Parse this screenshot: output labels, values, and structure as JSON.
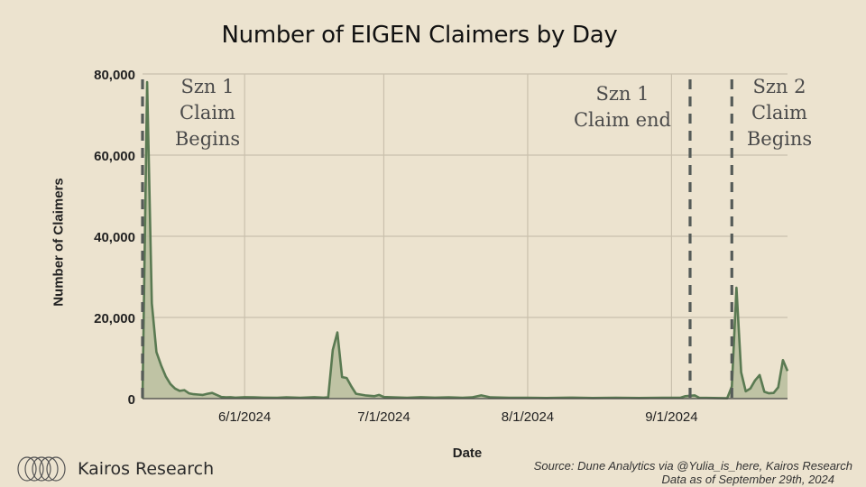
{
  "chart_data": {
    "type": "area",
    "title": "Number of EIGEN Claimers by Day",
    "xlabel": "Date",
    "ylabel": "Number of Claimers",
    "x_range": [
      "2024-05-10",
      "2024-09-26"
    ],
    "ylim": [
      0,
      80000
    ],
    "y_ticks": [
      0,
      20000,
      40000,
      60000,
      80000
    ],
    "y_tick_labels": [
      "0",
      "20,000",
      "40,000",
      "60,000",
      "80,000"
    ],
    "x_ticks": [
      "2024-06-01",
      "2024-07-01",
      "2024-08-01",
      "2024-09-01"
    ],
    "x_tick_labels": [
      "6/1/2024",
      "7/1/2024",
      "8/1/2024",
      "9/1/2024"
    ],
    "grid": true,
    "series": [
      {
        "color": "#5a7a52",
        "points": [
          [
            "2024-05-10",
            0
          ],
          [
            "2024-05-11",
            78000
          ],
          [
            "2024-05-12",
            23500
          ],
          [
            "2024-05-13",
            11500
          ],
          [
            "2024-05-14",
            8200
          ],
          [
            "2024-05-15",
            5500
          ],
          [
            "2024-05-16",
            3600
          ],
          [
            "2024-05-17",
            2500
          ],
          [
            "2024-05-18",
            1900
          ],
          [
            "2024-05-19",
            2100
          ],
          [
            "2024-05-20",
            1300
          ],
          [
            "2024-05-21",
            1100
          ],
          [
            "2024-05-22",
            1000
          ],
          [
            "2024-05-23",
            900
          ],
          [
            "2024-05-24",
            1200
          ],
          [
            "2024-05-25",
            1400
          ],
          [
            "2024-05-26",
            900
          ],
          [
            "2024-05-27",
            400
          ],
          [
            "2024-05-28",
            300
          ],
          [
            "2024-05-29",
            350
          ],
          [
            "2024-05-30",
            250
          ],
          [
            "2024-06-01",
            350
          ],
          [
            "2024-06-03",
            300
          ],
          [
            "2024-06-05",
            250
          ],
          [
            "2024-06-08",
            200
          ],
          [
            "2024-06-10",
            300
          ],
          [
            "2024-06-13",
            200
          ],
          [
            "2024-06-16",
            350
          ],
          [
            "2024-06-18",
            250
          ],
          [
            "2024-06-19",
            300
          ],
          [
            "2024-06-20",
            12000
          ],
          [
            "2024-06-21",
            16300
          ],
          [
            "2024-06-22",
            5300
          ],
          [
            "2024-06-23",
            5100
          ],
          [
            "2024-06-24",
            3000
          ],
          [
            "2024-06-25",
            1200
          ],
          [
            "2024-06-27",
            800
          ],
          [
            "2024-06-29",
            600
          ],
          [
            "2024-06-30",
            900
          ],
          [
            "2024-07-01",
            400
          ],
          [
            "2024-07-03",
            300
          ],
          [
            "2024-07-06",
            200
          ],
          [
            "2024-07-09",
            350
          ],
          [
            "2024-07-12",
            250
          ],
          [
            "2024-07-15",
            300
          ],
          [
            "2024-07-18",
            200
          ],
          [
            "2024-07-20",
            300
          ],
          [
            "2024-07-22",
            800
          ],
          [
            "2024-07-24",
            300
          ],
          [
            "2024-07-28",
            200
          ],
          [
            "2024-08-01",
            200
          ],
          [
            "2024-08-05",
            150
          ],
          [
            "2024-08-10",
            250
          ],
          [
            "2024-08-15",
            150
          ],
          [
            "2024-08-20",
            200
          ],
          [
            "2024-08-25",
            150
          ],
          [
            "2024-08-30",
            200
          ],
          [
            "2024-09-03",
            250
          ],
          [
            "2024-09-04",
            600
          ],
          [
            "2024-09-06",
            800
          ],
          [
            "2024-09-07",
            200
          ],
          [
            "2024-09-13",
            100
          ],
          [
            "2024-09-14",
            3000
          ],
          [
            "2024-09-15",
            27300
          ],
          [
            "2024-09-16",
            6500
          ],
          [
            "2024-09-17",
            1800
          ],
          [
            "2024-09-18",
            2500
          ],
          [
            "2024-09-19",
            4500
          ],
          [
            "2024-09-20",
            5800
          ],
          [
            "2024-09-21",
            1700
          ],
          [
            "2024-09-22",
            1300
          ],
          [
            "2024-09-23",
            1400
          ],
          [
            "2024-09-24",
            2800
          ],
          [
            "2024-09-25",
            9500
          ],
          [
            "2024-09-26",
            6800
          ]
        ]
      }
    ],
    "annotations": [
      {
        "text": "Szn 1\nClaim\nBegins",
        "date": "2024-05-10"
      },
      {
        "text": "Szn 1\nClaim end",
        "date": "2024-09-05"
      },
      {
        "text": "Szn 2\nClaim\nBegins",
        "date": "2024-09-14"
      }
    ]
  },
  "footer": {
    "brand": "Kairos Research",
    "source_line": "Source: Dune Analytics via @Yulia_is_here, Kairos Research",
    "data_date_line": "Data as of September 29th, 2024"
  }
}
